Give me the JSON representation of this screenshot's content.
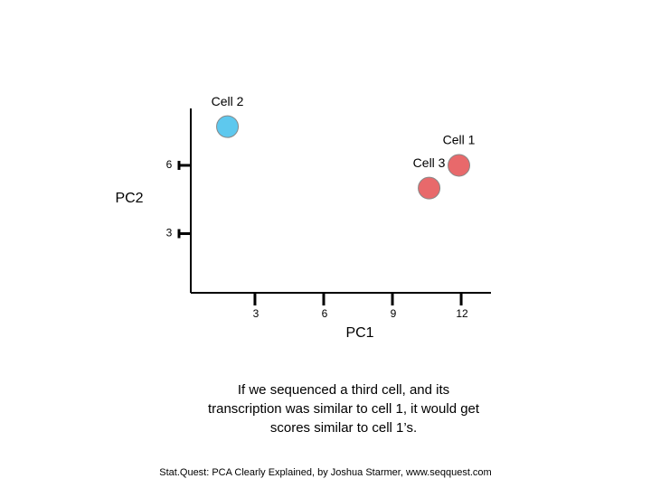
{
  "chart_data": {
    "type": "scatter",
    "series": [
      {
        "name": "Cell 1",
        "color": "#e8696b",
        "x": [
          11.9
        ],
        "values": [
          6.0
        ]
      },
      {
        "name": "Cell 2",
        "color": "#5ec8ee",
        "x": [
          1.8
        ],
        "values": [
          7.7
        ]
      },
      {
        "name": "Cell 3",
        "color": "#e8696b",
        "x": [
          10.6
        ],
        "values": [
          5.0
        ]
      }
    ],
    "xlabel": "PC1",
    "ylabel": "PC2",
    "xlim": [
      0.2,
      13.3
    ],
    "ylim": [
      0.4,
      8.5
    ],
    "xticks": [
      3,
      6,
      9,
      12
    ],
    "yticks": [
      3,
      6
    ]
  },
  "caption": [
    "If we sequenced a third cell, and its",
    "transcription was similar to cell 1, it would get",
    "scores similar to cell 1’s."
  ],
  "footer": "Stat.Quest: PCA Clearly Explained, by Joshua Starmer, www.seqquest.com"
}
